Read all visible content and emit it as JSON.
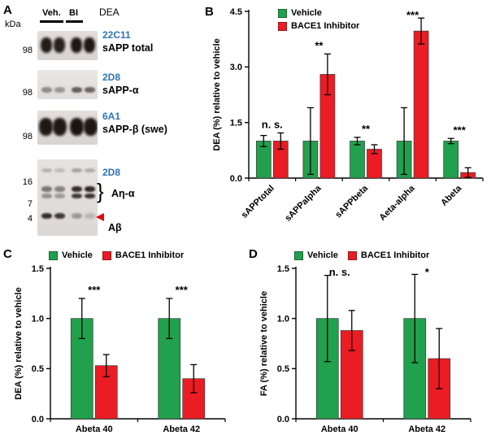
{
  "colors": {
    "vehicle_green": "#21A04D",
    "inhibitor_red": "#EB1C24",
    "antibody_blue": "#2E74B5",
    "arrowhead_red": "#E30613"
  },
  "panel_a": {
    "label": "A",
    "kda_label": "kDa",
    "treatment": "DEA",
    "bracket_glyph": "}",
    "lane_groups": [
      {
        "label": "Veh."
      },
      {
        "label": "BI"
      }
    ],
    "blots": [
      {
        "antibody": "22C11",
        "target": "sAPP total",
        "markers": [
          "98"
        ]
      },
      {
        "antibody": "2D8",
        "target": "sAPP-α",
        "markers": [
          "98"
        ]
      },
      {
        "antibody": "6A1",
        "target": "sAPP-β (swe)",
        "markers": [
          "98"
        ]
      },
      {
        "antibody": "2D8",
        "target_bracket": "Aη-α",
        "target_arrow": "Aβ",
        "markers": [
          "16",
          "7",
          "4"
        ]
      }
    ]
  },
  "chart_data": [
    {
      "panel_label": "B",
      "type": "bar",
      "categories": [
        "sAPPtotal",
        "sAPPalpha",
        "sAPPbeta",
        "Aeta-alpha",
        "Abeta"
      ],
      "series": [
        {
          "name": "Vehicle",
          "color": "#21A04D",
          "values": [
            1.0,
            1.0,
            1.0,
            1.0,
            1.0
          ],
          "errors": [
            0.15,
            0.9,
            0.1,
            0.9,
            0.07
          ]
        },
        {
          "name": "BACE1 Inhibitor",
          "color": "#EB1C24",
          "values": [
            1.0,
            2.8,
            0.78,
            3.97,
            0.15
          ],
          "errors": [
            0.22,
            0.55,
            0.12,
            0.35,
            0.13
          ]
        }
      ],
      "annotations": [
        "n. s.",
        "**",
        "**",
        "***",
        "***"
      ],
      "ylabel": "DEA (%) relative to vehicle",
      "xlabel": "",
      "ylim": [
        0,
        4.5
      ],
      "yticks": [
        0,
        1.5,
        3,
        4.5
      ],
      "grid": false,
      "rotated_xlabels": true,
      "legend_position": "top-left-vertical"
    },
    {
      "panel_label": "C",
      "type": "bar",
      "categories": [
        "Abeta 40",
        "Abeta 42"
      ],
      "series": [
        {
          "name": "Vehicle",
          "color": "#21A04D",
          "values": [
            1.0,
            1.0
          ],
          "errors": [
            0.2,
            0.2
          ]
        },
        {
          "name": "BACE1 Inhibitor",
          "color": "#EB1C24",
          "values": [
            0.53,
            0.4
          ],
          "errors": [
            0.11,
            0.14
          ]
        }
      ],
      "annotations": [
        "***",
        "***"
      ],
      "ylabel": "DEA (%) relative to vehicle",
      "xlabel": "",
      "ylim": [
        0,
        1.5
      ],
      "yticks": [
        0,
        0.5,
        1,
        1.5
      ],
      "grid": false,
      "rotated_xlabels": false,
      "legend_position": "top-horizontal"
    },
    {
      "panel_label": "D",
      "type": "bar",
      "categories": [
        "Abeta 40",
        "Abeta 42"
      ],
      "series": [
        {
          "name": "Vehicle",
          "color": "#21A04D",
          "values": [
            1.0,
            1.0
          ],
          "errors": [
            0.43,
            0.44
          ]
        },
        {
          "name": "BACE1 Inhibitor",
          "color": "#EB1C24",
          "values": [
            0.88,
            0.6
          ],
          "errors": [
            0.2,
            0.3
          ]
        }
      ],
      "annotations": [
        "n. s.",
        "*"
      ],
      "ylabel": "FA (%) relative to vehicle",
      "xlabel": "",
      "ylim": [
        0,
        1.5
      ],
      "yticks": [
        0,
        0.5,
        1,
        1.5
      ],
      "grid": false,
      "rotated_xlabels": false,
      "legend_position": "top-horizontal"
    }
  ]
}
